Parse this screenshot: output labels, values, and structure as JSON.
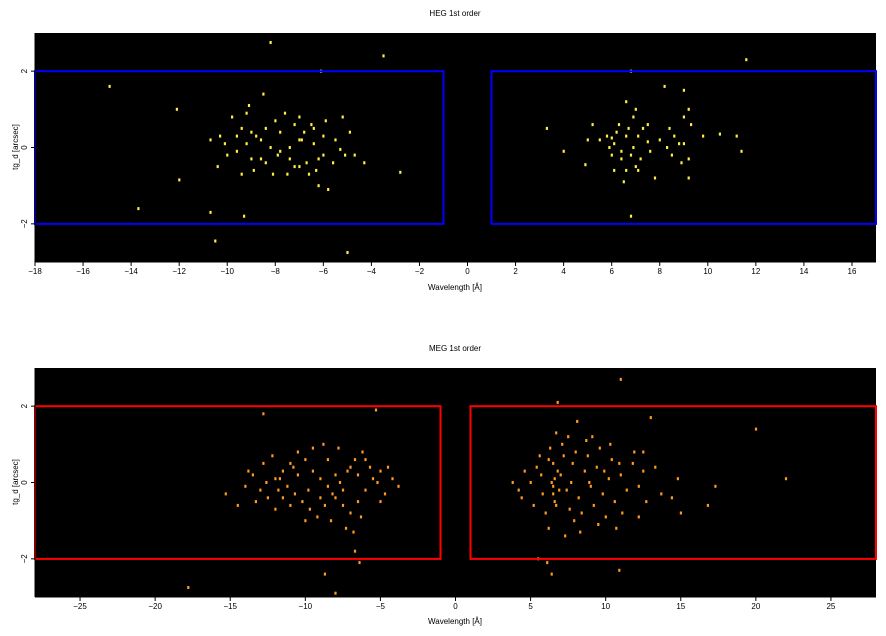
{
  "chart_data": [
    {
      "type": "scatter",
      "title": "HEG 1st order",
      "xlabel": "Wavelength [Å]",
      "ylabel": "tg_d [arcsec]",
      "xlim": [
        -18,
        17
      ],
      "ylim": [
        -3,
        3
      ],
      "xticks": [
        -18,
        -16,
        -14,
        -12,
        -10,
        -8,
        -6,
        -4,
        -2,
        0,
        2,
        4,
        6,
        8,
        10,
        12,
        14,
        16
      ],
      "yticks": [
        -2,
        0,
        2
      ],
      "background": "#000000",
      "point_color": "#ffee44",
      "region_color": "#0000ff",
      "regions": [
        {
          "x": [
            -18.0,
            -1.0
          ],
          "y": [
            -2.0,
            2.0
          ]
        },
        {
          "x": [
            1.0,
            17.0
          ],
          "y": [
            -2.0,
            2.0
          ]
        }
      ],
      "points": [
        [
          -8.2,
          2.75
        ],
        [
          -3.5,
          2.4
        ],
        [
          -6.1,
          2.0
        ],
        [
          6.8,
          2.0
        ],
        [
          11.6,
          2.3
        ],
        [
          -14.9,
          1.6
        ],
        [
          -8.5,
          1.4
        ],
        [
          -9.1,
          1.1
        ],
        [
          -12.1,
          1.0
        ],
        [
          -10.7,
          0.2
        ],
        [
          -10.3,
          0.3
        ],
        [
          -12.0,
          -0.85
        ],
        [
          -13.7,
          -1.6
        ],
        [
          -10.7,
          -1.7
        ],
        [
          -9.3,
          -1.8
        ],
        [
          -10.5,
          -2.45
        ],
        [
          -5.0,
          -2.75
        ],
        [
          3.3,
          0.5
        ],
        [
          4.0,
          -0.1
        ],
        [
          4.9,
          -0.45
        ],
        [
          5.5,
          0.2
        ],
        [
          6.6,
          1.2
        ],
        [
          7.0,
          1.0
        ],
        [
          7.5,
          0.6
        ],
        [
          8.2,
          1.6
        ],
        [
          9.0,
          1.5
        ],
        [
          9.2,
          1.0
        ],
        [
          9.0,
          0.1
        ],
        [
          9.2,
          -0.8
        ],
        [
          9.8,
          0.3
        ],
        [
          10.5,
          0.35
        ],
        [
          11.2,
          0.3
        ],
        [
          11.4,
          -0.1
        ],
        [
          7.8,
          -0.8
        ],
        [
          6.8,
          -1.8
        ],
        [
          6.6,
          -0.6
        ],
        [
          5.2,
          0.6
        ],
        [
          6.1,
          0.1
        ],
        [
          6.4,
          -0.3
        ],
        [
          8.3,
          0.0
        ],
        [
          8.6,
          0.3
        ],
        [
          7.1,
          0.3
        ],
        [
          5.8,
          0.3
        ],
        [
          6.0,
          -0.2
        ],
        [
          9.2,
          -0.3
        ],
        [
          -7.0,
          0.8
        ],
        [
          -6.5,
          0.6
        ],
        [
          -6.0,
          0.3
        ],
        [
          -5.5,
          0.2
        ],
        [
          -5.1,
          -0.2
        ],
        [
          -4.7,
          -0.2
        ],
        [
          -4.3,
          -0.4
        ],
        [
          -2.8,
          -0.65
        ],
        [
          -9.8,
          0.8
        ],
        [
          -9.4,
          0.5
        ],
        [
          -9.0,
          0.4
        ],
        [
          -8.6,
          0.2
        ],
        [
          -8.2,
          0.0
        ],
        [
          -7.8,
          -0.1
        ],
        [
          -7.4,
          -0.3
        ],
        [
          -7.0,
          -0.5
        ],
        [
          -6.6,
          -0.7
        ],
        [
          -6.2,
          -1.0
        ],
        [
          -5.8,
          -1.1
        ],
        [
          -10.0,
          -0.2
        ],
        [
          -9.6,
          -0.1
        ],
        [
          -9.2,
          0.1
        ],
        [
          -8.8,
          0.3
        ],
        [
          -8.4,
          0.5
        ],
        [
          -8.0,
          0.7
        ],
        [
          -7.6,
          0.9
        ],
        [
          -7.2,
          0.6
        ],
        [
          -6.8,
          0.4
        ],
        [
          -6.4,
          0.1
        ],
        [
          -6.0,
          -0.2
        ],
        [
          -5.6,
          -0.4
        ],
        [
          -10.4,
          -0.5
        ],
        [
          -9.4,
          -0.7
        ],
        [
          -8.9,
          -0.6
        ],
        [
          -8.4,
          -0.4
        ],
        [
          -7.9,
          -0.2
        ],
        [
          -7.4,
          0.0
        ],
        [
          -6.9,
          0.2
        ],
        [
          -6.4,
          0.5
        ],
        [
          -5.9,
          0.7
        ],
        [
          -5.2,
          0.8
        ],
        [
          -4.9,
          0.4
        ],
        [
          -9.2,
          0.9
        ],
        [
          -6.2,
          -0.3
        ],
        [
          -7.2,
          -0.5
        ],
        [
          -8.6,
          -0.3
        ],
        [
          -9.0,
          -0.3
        ],
        [
          -7.0,
          0.2
        ],
        [
          -6.7,
          -0.4
        ],
        [
          -5.3,
          -0.05
        ],
        [
          -9.6,
          0.3
        ],
        [
          -7.8,
          0.4
        ],
        [
          -8.1,
          -0.7
        ],
        [
          -7.5,
          -0.7
        ],
        [
          -6.3,
          -0.6
        ],
        [
          -10.1,
          0.1
        ],
        [
          6.3,
          0.6
        ],
        [
          6.6,
          0.3
        ],
        [
          6.9,
          0.0
        ],
        [
          7.2,
          -0.3
        ],
        [
          6.5,
          -0.9
        ],
        [
          7.0,
          -0.5
        ],
        [
          5.9,
          0.0
        ],
        [
          6.2,
          0.4
        ],
        [
          8.8,
          0.1
        ],
        [
          9.3,
          0.6
        ],
        [
          8.0,
          0.2
        ],
        [
          7.3,
          0.5
        ],
        [
          6.8,
          -0.2
        ],
        [
          6.1,
          -0.6
        ],
        [
          7.6,
          -0.1
        ],
        [
          8.5,
          -0.2
        ],
        [
          5.0,
          0.2
        ],
        [
          6.9,
          0.8
        ],
        [
          7.1,
          -0.6
        ],
        [
          6.7,
          0.5
        ],
        [
          8.4,
          0.5
        ],
        [
          9.0,
          0.8
        ],
        [
          6.0,
          0.25
        ],
        [
          6.4,
          -0.1
        ],
        [
          7.5,
          0.15
        ],
        [
          8.9,
          -0.4
        ]
      ]
    },
    {
      "type": "scatter",
      "title": "MEG 1st order",
      "xlabel": "Wavelength [Å]",
      "ylabel": "tg_d [arcsec]",
      "xlim": [
        -28,
        28
      ],
      "ylim": [
        -3,
        3
      ],
      "xticks": [
        -25,
        -20,
        -15,
        -10,
        -5,
        0,
        5,
        10,
        15,
        20,
        25
      ],
      "yticks": [
        -2,
        0,
        2
      ],
      "background": "#000000",
      "point_color": "#ff9922",
      "region_color": "#ff0000",
      "regions": [
        {
          "x": [
            -28.0,
            -1.0
          ],
          "y": [
            -2.0,
            2.0
          ]
        },
        {
          "x": [
            1.0,
            28.0
          ],
          "y": [
            -2.0,
            2.0
          ]
        }
      ],
      "points": [
        [
          11.0,
          2.7
        ],
        [
          -5.3,
          1.9
        ],
        [
          -12.8,
          1.8
        ],
        [
          6.8,
          2.1
        ],
        [
          13.0,
          1.7
        ],
        [
          8.1,
          1.6
        ],
        [
          -17.8,
          -2.75
        ],
        [
          -8.0,
          -2.9
        ],
        [
          -8.7,
          -2.4
        ],
        [
          -6.7,
          -1.8
        ],
        [
          -6.4,
          -2.1
        ],
        [
          6.1,
          -2.1
        ],
        [
          5.5,
          -2.0
        ],
        [
          6.4,
          -2.4
        ],
        [
          10.9,
          -2.3
        ],
        [
          22.0,
          0.1
        ],
        [
          20.0,
          1.4
        ],
        [
          -15.3,
          -0.3
        ],
        [
          -14.5,
          -0.6
        ],
        [
          16.8,
          -0.6
        ],
        [
          14.8,
          0.1
        ],
        [
          17.3,
          -0.1
        ],
        [
          12.5,
          0.8
        ],
        [
          12.2,
          -0.9
        ],
        [
          13.7,
          -0.3
        ],
        [
          14.4,
          -0.4
        ],
        [
          15.0,
          -0.8
        ],
        [
          3.8,
          0.0
        ],
        [
          4.2,
          -0.2
        ],
        [
          -14.0,
          -0.1
        ],
        [
          -13.5,
          0.2
        ],
        [
          -13.0,
          -0.2
        ],
        [
          -12.5,
          -0.4
        ],
        [
          -12.0,
          0.1
        ],
        [
          -11.5,
          0.3
        ],
        [
          -11.0,
          0.5
        ],
        [
          -10.5,
          0.8
        ],
        [
          -10.0,
          0.6
        ],
        [
          -9.5,
          0.3
        ],
        [
          -9.0,
          0.1
        ],
        [
          -8.5,
          -0.1
        ],
        [
          -8.0,
          -0.4
        ],
        [
          -7.5,
          -0.6
        ],
        [
          -7.0,
          -0.8
        ],
        [
          -6.5,
          -0.5
        ],
        [
          -6.0,
          -0.2
        ],
        [
          -5.5,
          0.1
        ],
        [
          -5.0,
          0.3
        ],
        [
          -4.5,
          0.4
        ],
        [
          -4.2,
          0.1
        ],
        [
          -3.8,
          -0.1
        ],
        [
          -12.8,
          0.5
        ],
        [
          -12.2,
          0.7
        ],
        [
          -11.7,
          0.1
        ],
        [
          -11.2,
          -0.1
        ],
        [
          -10.7,
          -0.3
        ],
        [
          -10.2,
          -0.5
        ],
        [
          -9.7,
          -0.7
        ],
        [
          -9.2,
          -0.9
        ],
        [
          -8.7,
          -0.6
        ],
        [
          -8.2,
          -0.3
        ],
        [
          -7.7,
          0.0
        ],
        [
          -7.2,
          0.3
        ],
        [
          -6.7,
          0.6
        ],
        [
          -6.2,
          0.8
        ],
        [
          -5.7,
          0.4
        ],
        [
          -5.2,
          0.0
        ],
        [
          -4.7,
          -0.3
        ],
        [
          -11.0,
          -0.6
        ],
        [
          -10.0,
          -1.0
        ],
        [
          -9.0,
          -0.4
        ],
        [
          -8.0,
          0.2
        ],
        [
          -7.0,
          0.4
        ],
        [
          -6.5,
          0.2
        ],
        [
          -8.5,
          0.6
        ],
        [
          -9.5,
          0.9
        ],
        [
          -10.5,
          0.2
        ],
        [
          -11.5,
          -0.4
        ],
        [
          -12.0,
          -0.7
        ],
        [
          -13.3,
          -0.5
        ],
        [
          -7.3,
          -1.2
        ],
        [
          -8.3,
          -1.0
        ],
        [
          -6.8,
          -1.3
        ],
        [
          -9.8,
          -0.2
        ],
        [
          -7.8,
          0.9
        ],
        [
          -6.0,
          0.6
        ],
        [
          -5.0,
          -0.5
        ],
        [
          -10.8,
          0.4
        ],
        [
          -11.8,
          -0.2
        ],
        [
          -8.8,
          1.0
        ],
        [
          -7.5,
          -0.2
        ],
        [
          -6.3,
          -0.9
        ],
        [
          -12.6,
          0.0
        ],
        [
          -13.8,
          0.3
        ],
        [
          5.0,
          0.0
        ],
        [
          5.4,
          0.4
        ],
        [
          5.8,
          -0.3
        ],
        [
          6.2,
          0.6
        ],
        [
          6.6,
          -0.5
        ],
        [
          7.0,
          0.2
        ],
        [
          7.4,
          -0.2
        ],
        [
          7.8,
          0.5
        ],
        [
          8.2,
          -0.4
        ],
        [
          8.6,
          0.3
        ],
        [
          9.0,
          -0.1
        ],
        [
          9.4,
          0.4
        ],
        [
          9.8,
          -0.3
        ],
        [
          10.2,
          0.1
        ],
        [
          10.6,
          -0.5
        ],
        [
          11.0,
          0.2
        ],
        [
          11.4,
          -0.2
        ],
        [
          11.8,
          0.5
        ],
        [
          12.2,
          -0.1
        ],
        [
          6.4,
          0.0
        ],
        [
          6.6,
          0.1
        ],
        [
          6.5,
          -0.1
        ],
        [
          6.8,
          0.3
        ],
        [
          6.9,
          -0.2
        ],
        [
          7.2,
          0.7
        ],
        [
          7.6,
          -0.7
        ],
        [
          8.0,
          0.8
        ],
        [
          8.4,
          -0.8
        ],
        [
          8.8,
          0.7
        ],
        [
          9.2,
          -0.6
        ],
        [
          9.6,
          0.9
        ],
        [
          10.0,
          -0.9
        ],
        [
          10.4,
          0.6
        ],
        [
          5.2,
          -0.6
        ],
        [
          5.6,
          0.7
        ],
        [
          6.0,
          -0.8
        ],
        [
          6.3,
          0.9
        ],
        [
          7.1,
          1.0
        ],
        [
          7.9,
          -1.0
        ],
        [
          8.7,
          1.1
        ],
        [
          9.5,
          -1.1
        ],
        [
          10.3,
          1.0
        ],
        [
          11.1,
          -0.8
        ],
        [
          11.9,
          0.8
        ],
        [
          4.6,
          0.3
        ],
        [
          4.4,
          -0.4
        ],
        [
          6.7,
          1.3
        ],
        [
          7.5,
          1.2
        ],
        [
          8.3,
          -1.3
        ],
        [
          9.1,
          1.2
        ],
        [
          6.2,
          -1.2
        ],
        [
          7.3,
          -1.4
        ],
        [
          10.7,
          -1.2
        ],
        [
          12.7,
          -0.5
        ],
        [
          13.3,
          0.4
        ],
        [
          6.5,
          0.5
        ],
        [
          6.7,
          -0.6
        ],
        [
          7.7,
          0.0
        ],
        [
          8.9,
          0.0
        ],
        [
          9.9,
          0.3
        ],
        [
          5.7,
          0.2
        ],
        [
          10.9,
          0.5
        ],
        [
          12.5,
          0.3
        ],
        [
          6.5,
          -0.3
        ]
      ]
    }
  ]
}
